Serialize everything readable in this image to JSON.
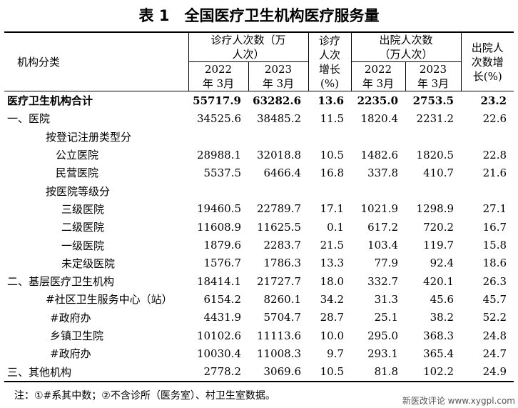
{
  "title": "表 1　全国医疗卫生机构医疗服务量",
  "header": {
    "category": "机构分类",
    "visits": "诊疗人次数（万人次）",
    "visits_growth": "诊疗人次增长(%)",
    "discharges": "出院人次数（万人次）",
    "discharges_growth": "出院人次数增长(%)",
    "year_2022": "2022 年 3月",
    "year_2023": "2023 年 3月"
  },
  "rows": [
    {
      "name": "医疗卫生机构合计",
      "v2022": "55717.9",
      "v2023": "63282.6",
      "vg": "13.6",
      "d2022": "2235.0",
      "d2023": "2753.5",
      "dg": "23.2"
    },
    {
      "name": "一、医院",
      "v2022": "34525.6",
      "v2023": "38485.2",
      "vg": "11.5",
      "d2022": "1820.4",
      "d2023": "2231.2",
      "dg": "22.6"
    },
    {
      "name": "按登记注册类型分",
      "v2022": "",
      "v2023": "",
      "vg": "",
      "d2022": "",
      "d2023": "",
      "dg": ""
    },
    {
      "name": "公立医院",
      "v2022": "28988.1",
      "v2023": "32018.8",
      "vg": "10.5",
      "d2022": "1482.6",
      "d2023": "1820.5",
      "dg": "22.8"
    },
    {
      "name": "民营医院",
      "v2022": "5537.5",
      "v2023": "6466.4",
      "vg": "16.8",
      "d2022": "337.8",
      "d2023": "410.7",
      "dg": "21.6"
    },
    {
      "name": "按医院等级分",
      "v2022": "",
      "v2023": "",
      "vg": "",
      "d2022": "",
      "d2023": "",
      "dg": ""
    },
    {
      "name": "三级医院",
      "v2022": "19460.5",
      "v2023": "22789.7",
      "vg": "17.1",
      "d2022": "1021.9",
      "d2023": "1298.9",
      "dg": "27.1"
    },
    {
      "name": "二级医院",
      "v2022": "11608.9",
      "v2023": "11625.5",
      "vg": "0.1",
      "d2022": "617.2",
      "d2023": "720.2",
      "dg": "16.7"
    },
    {
      "name": "一级医院",
      "v2022": "1879.6",
      "v2023": "2283.7",
      "vg": "21.5",
      "d2022": "103.4",
      "d2023": "119.7",
      "dg": "15.8"
    },
    {
      "name": "未定级医院",
      "v2022": "1576.7",
      "v2023": "1786.3",
      "vg": "13.3",
      "d2022": "77.9",
      "d2023": "92.4",
      "dg": "18.6"
    },
    {
      "name": "二、基层医疗卫生机构",
      "v2022": "18414.1",
      "v2023": "21727.7",
      "vg": "18.0",
      "d2022": "332.7",
      "d2023": "420.1",
      "dg": "26.3"
    },
    {
      "name": "#社区卫生服务中心（站）",
      "v2022": "6154.2",
      "v2023": "8260.1",
      "vg": "34.2",
      "d2022": "31.3",
      "d2023": "45.6",
      "dg": "45.7"
    },
    {
      "name": "#政府办",
      "v2022": "4431.9",
      "v2023": "5704.7",
      "vg": "28.7",
      "d2022": "25.1",
      "d2023": "38.2",
      "dg": "52.2"
    },
    {
      "name": "乡镇卫生院",
      "v2022": "10102.6",
      "v2023": "11113.6",
      "vg": "10.0",
      "d2022": "295.0",
      "d2023": "368.3",
      "dg": "24.8"
    },
    {
      "name": "#政府办",
      "v2022": "10030.4",
      "v2023": "11008.3",
      "vg": "9.7",
      "d2022": "293.1",
      "d2023": "365.4",
      "dg": "24.7"
    },
    {
      "name": "三、其他机构",
      "v2022": "2778.2",
      "v2023": "3069.6",
      "vg": "10.5",
      "d2022": "81.8",
      "d2023": "102.2",
      "dg": "24.9"
    }
  ],
  "footnote": "注：①#系其中数；②不含诊所（医务室）、村卫生室数据。",
  "watermark": "新医改评论 www.xygpl.com"
}
